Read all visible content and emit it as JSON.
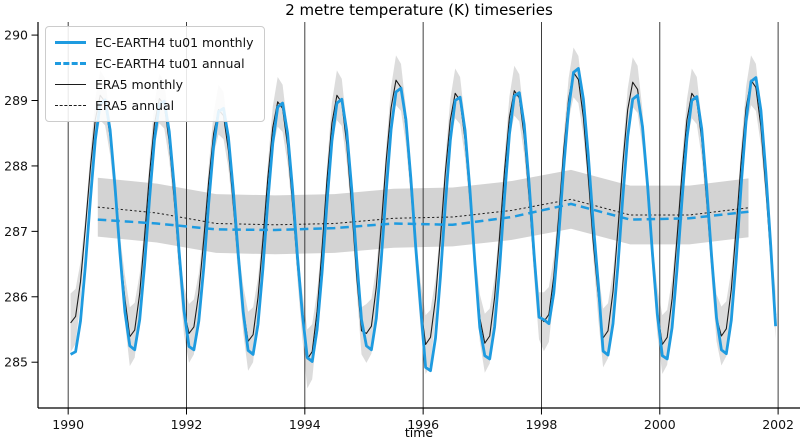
{
  "chart": {
    "title": "2 metre temperature (K) timeseries",
    "xlabel": "time"
  },
  "legend": {
    "position": "upper-left",
    "items": [
      {
        "label": "EC-EARTH4 tu01 monthly",
        "color": "#1e9be0",
        "line": "solid-thick"
      },
      {
        "label": "EC-EARTH4 tu01 annual",
        "color": "#1e9be0",
        "line": "dashed-thick"
      },
      {
        "label": "ERA5 monthly",
        "color": "#1c1c1c",
        "line": "solid-thin"
      },
      {
        "label": "ERA5 annual",
        "color": "#1c1c1c",
        "line": "dashed-thin"
      }
    ]
  },
  "colors": {
    "ec_earth": "#1e9be0",
    "era5": "#1c1c1c",
    "band_gray": "#808080",
    "grid": "#2a2a2a",
    "spine": "#000000"
  },
  "chart_data": {
    "type": "line",
    "title": "2 metre temperature (K) timeseries",
    "xlabel": "time",
    "ylabel": "",
    "xlim": [
      1989.49,
      2002.37
    ],
    "ylim": [
      284.3,
      290.2
    ],
    "xticks": [
      1990,
      1992,
      1994,
      1996,
      1998,
      2000,
      2002
    ],
    "yticks": [
      285,
      286,
      287,
      288,
      289,
      290
    ],
    "grid": "vertical-only",
    "legend_position": "upper-left",
    "series": [
      {
        "name": "EC-EARTH4 tu01 monthly",
        "color": "#1e9be0",
        "style": "solid",
        "linewidth": 2.8,
        "time_start": 1990,
        "time_step_years": 0.0833333,
        "values": [
          285.12,
          285.16,
          285.63,
          286.48,
          287.49,
          288.4,
          288.95,
          289.01,
          288.55,
          287.69,
          286.68,
          285.77,
          285.25,
          285.19,
          285.65,
          286.49,
          287.49,
          288.39,
          288.94,
          288.99,
          288.53,
          287.69,
          286.69,
          285.79,
          285.24,
          285.19,
          285.63,
          286.45,
          287.43,
          288.3,
          288.83,
          288.88,
          288.44,
          287.62,
          286.64,
          285.77,
          285.18,
          285.12,
          285.58,
          286.43,
          287.45,
          288.35,
          288.9,
          288.96,
          288.5,
          287.65,
          286.63,
          285.73,
          285.07,
          285.01,
          285.5,
          286.38,
          287.44,
          288.38,
          288.96,
          289.02,
          288.54,
          287.65,
          286.59,
          285.65,
          285.25,
          285.19,
          285.67,
          286.56,
          287.61,
          288.56,
          289.13,
          289.19,
          288.71,
          287.82,
          286.77,
          285.82,
          284.92,
          284.87,
          285.37,
          286.3,
          287.4,
          288.39,
          289.0,
          289.05,
          288.55,
          287.62,
          286.52,
          285.53,
          285.1,
          285.05,
          285.54,
          286.44,
          287.52,
          288.48,
          289.07,
          289.12,
          288.63,
          287.73,
          286.65,
          285.69,
          285.65,
          285.59,
          286.06,
          286.93,
          287.95,
          288.87,
          289.43,
          289.49,
          289.02,
          288.16,
          287.13,
          286.21,
          285.17,
          285.11,
          285.59,
          286.47,
          287.52,
          288.45,
          289.02,
          289.08,
          288.6,
          287.72,
          286.67,
          285.74,
          285.1,
          285.05,
          285.53,
          286.42,
          287.48,
          288.42,
          289.0,
          289.06,
          288.57,
          287.68,
          286.62,
          285.68,
          285.19,
          285.13,
          285.64,
          286.57,
          287.69,
          288.69,
          289.29,
          289.35,
          288.85,
          287.91,
          286.79,
          285.55
        ]
      },
      {
        "name": "EC-EARTH4 tu01 annual",
        "color": "#1e9be0",
        "style": "dashed",
        "linewidth": 2.5,
        "x": [
          1990.5,
          1991.5,
          1992.5,
          1993.5,
          1994.5,
          1995.5,
          1996.5,
          1997.5,
          1998.5,
          1999.5,
          2000.5,
          2001.5
        ],
        "values": [
          287.18,
          287.12,
          287.03,
          287.02,
          287.05,
          287.12,
          287.1,
          287.22,
          287.42,
          287.18,
          287.2,
          287.3
        ]
      },
      {
        "name": "ERA5 monthly",
        "color": "#1c1c1c",
        "style": "solid",
        "linewidth": 1.1,
        "time_start": 1990,
        "time_step_years": 0.0833333,
        "band": {
          "type": "envelope",
          "halfwidth_by_month": [
            0.45,
            0.42,
            0.3,
            0.17,
            0.22,
            0.32,
            0.38,
            0.36,
            0.28,
            0.17,
            0.22,
            0.36
          ],
          "color": "#808080",
          "opacity": 0.28
        },
        "values": [
          285.6,
          285.7,
          286.23,
          287.06,
          287.97,
          288.71,
          289.08,
          288.98,
          288.45,
          287.62,
          286.71,
          285.97,
          285.39,
          285.49,
          286.05,
          286.92,
          287.87,
          288.64,
          289.03,
          288.93,
          288.37,
          287.5,
          286.55,
          285.78,
          285.44,
          285.54,
          286.06,
          286.88,
          287.77,
          288.49,
          288.86,
          288.77,
          288.24,
          287.42,
          286.53,
          285.81,
          285.32,
          285.42,
          285.99,
          286.86,
          287.81,
          288.59,
          288.98,
          288.88,
          288.31,
          287.44,
          286.49,
          285.71,
          285.05,
          285.16,
          285.78,
          286.74,
          287.79,
          288.65,
          289.08,
          288.97,
          288.34,
          287.38,
          286.33,
          285.48,
          285.44,
          285.55,
          286.15,
          287.07,
          288.08,
          288.89,
          289.31,
          289.2,
          288.61,
          287.68,
          286.67,
          285.86,
          285.27,
          285.38,
          285.97,
          286.89,
          287.89,
          288.7,
          289.11,
          289.0,
          288.41,
          287.49,
          286.5,
          285.68,
          285.29,
          285.4,
          285.99,
          286.92,
          287.92,
          288.74,
          289.15,
          289.04,
          288.45,
          287.53,
          286.52,
          285.71,
          285.62,
          285.73,
          286.31,
          287.22,
          288.22,
          289.02,
          289.43,
          289.32,
          288.74,
          287.83,
          286.84,
          286.03,
          285.37,
          285.48,
          286.08,
          287.02,
          288.03,
          288.86,
          289.28,
          289.17,
          288.57,
          287.63,
          286.62,
          285.79,
          285.27,
          285.38,
          285.97,
          286.89,
          287.89,
          288.7,
          289.11,
          289.0,
          288.41,
          287.49,
          286.5,
          285.68,
          285.4,
          285.51,
          286.11,
          287.05,
          288.06,
          288.89,
          289.31,
          289.2,
          288.6,
          287.66,
          286.65,
          285.72
        ]
      },
      {
        "name": "ERA5 annual",
        "color": "#1c1c1c",
        "style": "dotted",
        "linewidth": 1,
        "x": [
          1990.5,
          1991.5,
          1992.5,
          1993.5,
          1994.5,
          1995.5,
          1996.5,
          1997.5,
          1998.5,
          1999.5,
          2000.5,
          2001.5
        ],
        "band": {
          "type": "spread",
          "halfwidth": 0.45,
          "color": "#808080",
          "opacity": 0.35
        },
        "values": [
          287.37,
          287.28,
          287.12,
          287.1,
          287.12,
          287.2,
          287.22,
          287.32,
          287.49,
          287.25,
          287.25,
          287.36
        ]
      }
    ]
  }
}
